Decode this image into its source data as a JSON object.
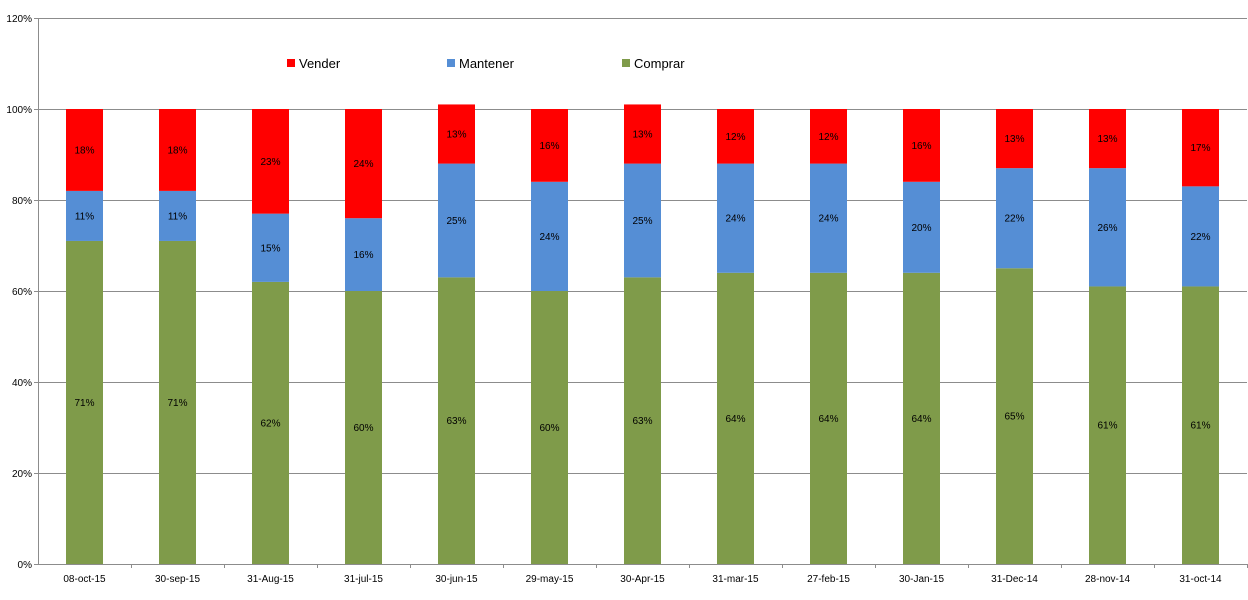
{
  "chart_data": {
    "type": "bar",
    "stacked": true,
    "title": "",
    "xlabel": "",
    "ylabel": "",
    "ylim": [
      0,
      120
    ],
    "y_ticks": [
      "0%",
      "20%",
      "40%",
      "60%",
      "80%",
      "100%",
      "120%"
    ],
    "y_tick_values": [
      0,
      20,
      40,
      60,
      80,
      100,
      120
    ],
    "grid": true,
    "legend_position": "top",
    "categories": [
      "08-oct-15",
      "30-sep-15",
      "31-Aug-15",
      "31-jul-15",
      "30-jun-15",
      "29-may-15",
      "30-Apr-15",
      "31-mar-15",
      "27-feb-15",
      "30-Jan-15",
      "31-Dec-14",
      "28-nov-14",
      "31-oct-14"
    ],
    "series": [
      {
        "name": "Comprar",
        "color": "#7f9b4a",
        "values": [
          71,
          71,
          62,
          60,
          63,
          60,
          63,
          64,
          64,
          64,
          65,
          61,
          61
        ],
        "labels": [
          "71%",
          "71%",
          "62%",
          "60%",
          "63%",
          "60%",
          "63%",
          "64%",
          "64%",
          "64%",
          "65%",
          "61%",
          "61%"
        ]
      },
      {
        "name": "Mantener",
        "color": "#558ed5",
        "values": [
          11,
          11,
          15,
          16,
          25,
          24,
          25,
          24,
          24,
          20,
          22,
          26,
          22
        ],
        "labels": [
          "11%",
          "11%",
          "15%",
          "16%",
          "25%",
          "24%",
          "25%",
          "24%",
          "24%",
          "20%",
          "22%",
          "26%",
          "22%"
        ]
      },
      {
        "name": "Vender",
        "color": "#ff0000",
        "values": [
          18,
          18,
          23,
          24,
          13,
          16,
          13,
          12,
          12,
          16,
          13,
          13,
          17
        ],
        "labels": [
          "18%",
          "18%",
          "23%",
          "24%",
          "13%",
          "16%",
          "13%",
          "12%",
          "12%",
          "16%",
          "13%",
          "13%",
          "17%"
        ]
      }
    ],
    "legend": [
      {
        "name": "Vender",
        "color": "#ff0000"
      },
      {
        "name": "Mantener",
        "color": "#558ed5"
      },
      {
        "name": "Comprar",
        "color": "#7f9b4a"
      }
    ]
  }
}
